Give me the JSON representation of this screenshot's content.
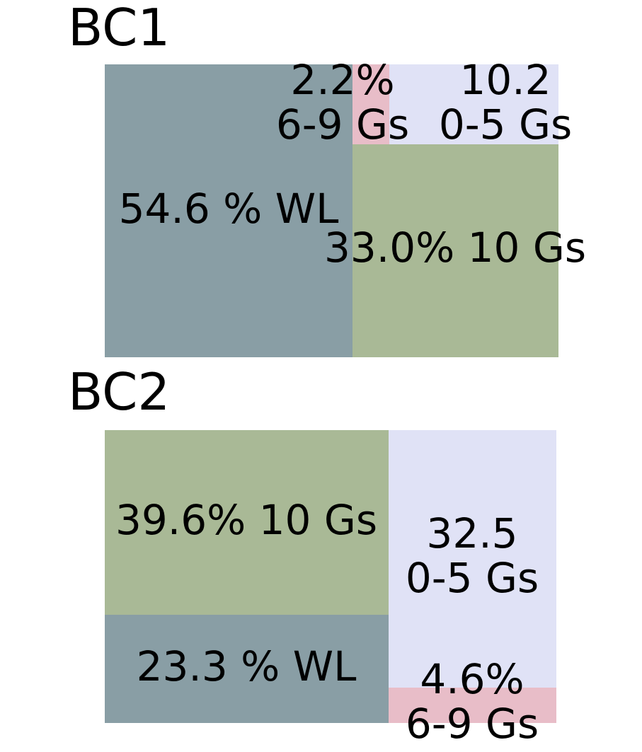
{
  "chart_data": [
    {
      "type": "treemap",
      "title": "BC1",
      "colors": {
        "WL": "#899ea5",
        "10 Gs": "#a9b996",
        "0-5 Gs": "#e0e2f6",
        "6-9 Gs": "#e8bdc8"
      },
      "tiles": [
        {
          "category": "WL",
          "value": 54.6,
          "label_lines": [
            "54.6 % WL"
          ]
        },
        {
          "category": "10 Gs",
          "value": 33.0,
          "label_lines": [
            "33.0% 10 Gs"
          ]
        },
        {
          "category": "6-9 Gs",
          "value": 2.2,
          "label_lines": [
            "2.2%",
            "6-9 Gs"
          ]
        },
        {
          "category": "0-5 Gs",
          "value": 10.2,
          "label_lines": [
            "10.2",
            "0-5 Gs"
          ]
        }
      ]
    },
    {
      "type": "treemap",
      "title": "BC2",
      "colors": {
        "WL": "#899ea5",
        "10 Gs": "#a9b996",
        "0-5 Gs": "#e0e2f6",
        "6-9 Gs": "#e8bdc8"
      },
      "tiles": [
        {
          "category": "10 Gs",
          "value": 39.6,
          "label_lines": [
            "39.6% 10 Gs"
          ]
        },
        {
          "category": "WL",
          "value": 23.3,
          "label_lines": [
            "23.3 % WL"
          ]
        },
        {
          "category": "0-5 Gs",
          "value": 32.5,
          "label_lines": [
            "32.5",
            "0-5 Gs"
          ]
        },
        {
          "category": "6-9 Gs",
          "value": 4.6,
          "label_lines": [
            "4.6%",
            "6-9 Gs"
          ]
        }
      ]
    }
  ]
}
